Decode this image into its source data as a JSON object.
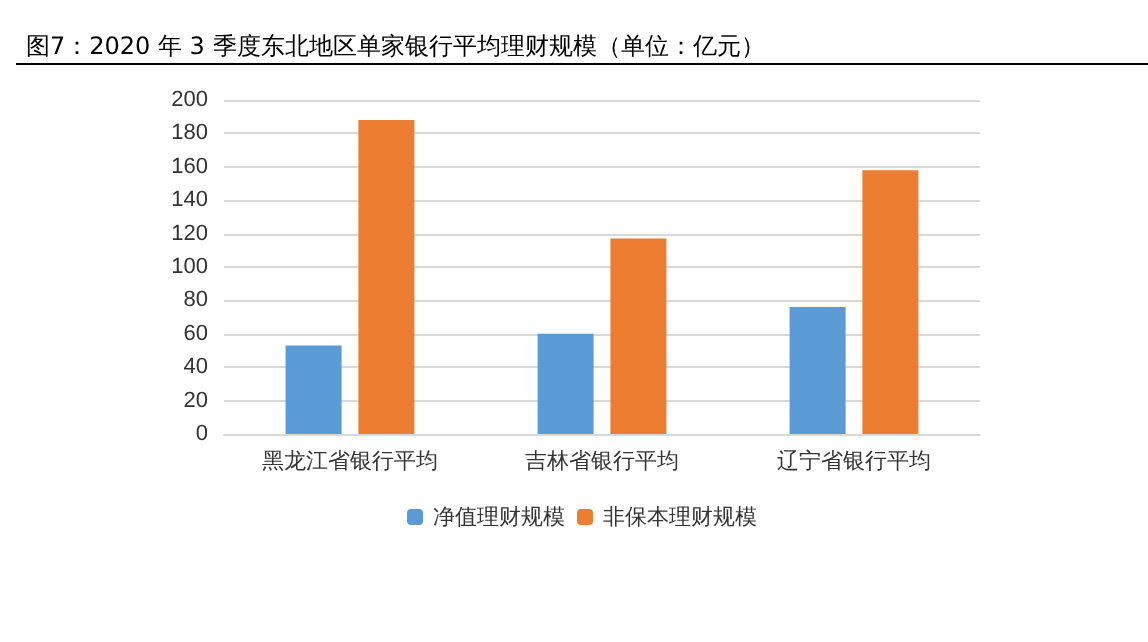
{
  "chart_data": {
    "type": "bar",
    "title": "图7：2020 年 3 季度东北地区单家银行平均理财规模（单位：亿元）",
    "categories": [
      "黑龙江省银行平均",
      "吉林省银行平均",
      "辽宁省银行平均"
    ],
    "series": [
      {
        "name": "净值理财规模",
        "color": "#5b9bd5",
        "values": [
          53,
          60,
          76
        ]
      },
      {
        "name": "非保本理财规模",
        "color": "#ed7d31",
        "values": [
          188,
          117,
          158
        ]
      }
    ],
    "ylim": [
      0,
      200
    ],
    "yticks": [
      0,
      20,
      40,
      60,
      80,
      100,
      120,
      140,
      160,
      180,
      200
    ],
    "grid": "y",
    "legend": "bottom"
  }
}
